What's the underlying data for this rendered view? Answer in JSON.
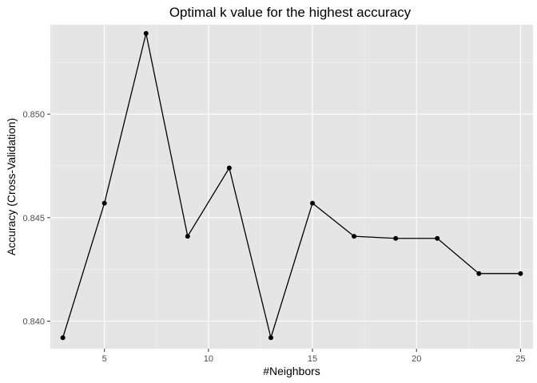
{
  "chart_data": {
    "type": "line",
    "title": "Optimal k value for the highest accuracy",
    "xlabel": "#Neighbors",
    "ylabel": "Accuracy (Cross-Validation)",
    "x": [
      3,
      5,
      7,
      9,
      11,
      13,
      15,
      17,
      19,
      21,
      23,
      25
    ],
    "series": [
      {
        "values": [
          0.8392,
          0.8457,
          0.8539,
          0.8441,
          0.8474,
          0.8392,
          0.8457,
          0.8441,
          0.844,
          0.844,
          0.8423,
          0.8423
        ]
      }
    ],
    "xlim": [
      2.4,
      25.6
    ],
    "ylim": [
      0.83867,
      0.85432
    ],
    "x_ticks": [
      5,
      10,
      15,
      20,
      25
    ],
    "x_tick_labels": [
      "5",
      "10",
      "15",
      "20",
      "25"
    ],
    "y_ticks": [
      0.84,
      0.845,
      0.85
    ],
    "y_tick_labels": [
      "0.840",
      "0.845",
      "0.850"
    ],
    "grid": true,
    "colors": {
      "panel_background": "#e5e5e5",
      "grid": "#ffffff",
      "line": "#000000",
      "points": "#000000"
    }
  }
}
